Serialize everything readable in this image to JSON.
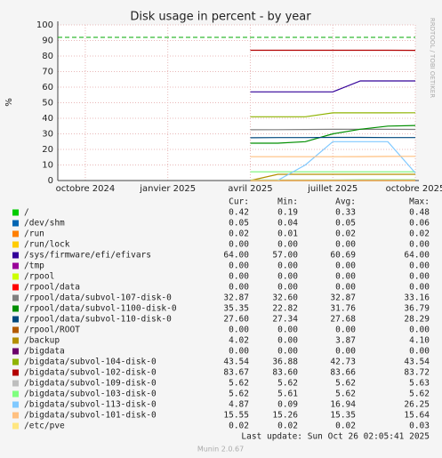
{
  "chart_data": {
    "type": "line",
    "title": "Disk usage in percent - by year",
    "y_label": "%",
    "side_label": "RRDTOOL / TOBI OETIKER",
    "x": [
      "2025-04",
      "2025-05",
      "2025-06",
      "2025-07",
      "2025-08",
      "2025-09",
      "2025-10"
    ],
    "xlim": [
      "2024-09",
      "2025-10"
    ],
    "xticks": [
      {
        "value": "2024-10",
        "label": "octobre 2024"
      },
      {
        "value": "2025-01",
        "label": "janvier 2025"
      },
      {
        "value": "2025-04",
        "label": "avril 2025"
      },
      {
        "value": "2025-07",
        "label": "juillet 2025"
      },
      {
        "value": "2025-10",
        "label": "octobre 2025"
      }
    ],
    "ylim": [
      0,
      100
    ],
    "yticks": [
      0,
      10,
      20,
      30,
      40,
      50,
      60,
      70,
      80,
      90,
      100
    ],
    "grid": true,
    "warning": {
      "value": 92,
      "color": "#00aa00"
    },
    "series": [
      {
        "name": "/",
        "color": "#00cc00",
        "values": [
          0.3,
          0.3,
          0.3,
          0.3,
          0.4,
          0.4,
          0.42
        ]
      },
      {
        "name": "/dev/shm",
        "color": "#0066b3",
        "values": [
          0.05,
          0.05,
          0.05,
          0.05,
          0.05,
          0.05,
          0.05
        ]
      },
      {
        "name": "/run",
        "color": "#ff8000",
        "values": [
          0.02,
          0.02,
          0.02,
          0.02,
          0.02,
          0.02,
          0.02
        ]
      },
      {
        "name": "/run/lock",
        "color": "#ffcc00",
        "values": [
          0,
          0,
          0,
          0,
          0,
          0,
          0
        ]
      },
      {
        "name": "/sys/firmware/efi/efivars",
        "color": "#330099",
        "values": [
          57,
          57,
          57,
          57,
          64,
          64,
          64
        ]
      },
      {
        "name": "/tmp",
        "color": "#990099",
        "values": [
          0,
          0,
          0,
          0,
          0,
          0,
          0
        ]
      },
      {
        "name": "/rpool",
        "color": "#ccff00",
        "values": [
          0,
          0,
          0,
          0,
          0,
          0,
          0
        ]
      },
      {
        "name": "/rpool/data",
        "color": "#ff0000",
        "values": [
          0,
          0,
          0,
          0,
          0,
          0,
          0
        ]
      },
      {
        "name": "/rpool/data/subvol-107-disk-0",
        "color": "#808080",
        "values": [
          32.6,
          32.7,
          32.8,
          32.9,
          32.9,
          32.9,
          32.87
        ]
      },
      {
        "name": "/rpool/data/subvol-1100-disk-0",
        "color": "#008f00",
        "values": [
          24,
          24,
          25,
          30,
          33,
          35,
          35.35
        ]
      },
      {
        "name": "/rpool/data/subvol-110-disk-0",
        "color": "#00487d",
        "values": [
          27.5,
          27.6,
          27.6,
          27.7,
          27.7,
          27.6,
          27.6
        ]
      },
      {
        "name": "/rpool/ROOT",
        "color": "#b35a00",
        "values": [
          0,
          0,
          0,
          0,
          0,
          0,
          0
        ]
      },
      {
        "name": "/backup",
        "color": "#b38f00",
        "values": [
          0,
          4,
          4,
          4,
          4,
          4,
          4.02
        ]
      },
      {
        "name": "/bigdata",
        "color": "#6b006b",
        "values": [
          0,
          0,
          0,
          0,
          0,
          0,
          0
        ]
      },
      {
        "name": "/bigdata/subvol-104-disk-0",
        "color": "#8fb300",
        "values": [
          41,
          41,
          41,
          43.5,
          43.5,
          43.5,
          43.54
        ]
      },
      {
        "name": "/bigdata/subvol-102-disk-0",
        "color": "#b30000",
        "values": [
          83.7,
          83.7,
          83.7,
          83.7,
          83.7,
          83.7,
          83.67
        ]
      },
      {
        "name": "/bigdata/subvol-109-disk-0",
        "color": "#bebebe",
        "values": [
          5.62,
          5.62,
          5.62,
          5.62,
          5.62,
          5.62,
          5.62
        ]
      },
      {
        "name": "/bigdata/subvol-103-disk-0",
        "color": "#80ff80",
        "values": [
          5.62,
          5.62,
          5.62,
          5.62,
          5.62,
          5.62,
          5.62
        ]
      },
      {
        "name": "/bigdata/subvol-113-disk-0",
        "color": "#80c9ff",
        "values": [
          0.1,
          0.1,
          10,
          25,
          25,
          25,
          4.87
        ]
      },
      {
        "name": "/bigdata/subvol-101-disk-0",
        "color": "#ffc080",
        "values": [
          15.3,
          15.3,
          15.3,
          15.3,
          15.4,
          15.5,
          15.55
        ]
      },
      {
        "name": "/etc/pve",
        "color": "#ffe680",
        "values": [
          0.02,
          0.02,
          0.02,
          0.02,
          0.02,
          0.02,
          0.02
        ]
      }
    ],
    "stats": {
      "columns": [
        "Cur:",
        "Min:",
        "Avg:",
        "Max:"
      ],
      "rows": [
        [
          "0.42",
          "0.19",
          "0.33",
          "0.48"
        ],
        [
          "0.05",
          "0.04",
          "0.05",
          "0.06"
        ],
        [
          "0.02",
          "0.01",
          "0.02",
          "0.02"
        ],
        [
          "0.00",
          "0.00",
          "0.00",
          "0.00"
        ],
        [
          "64.00",
          "57.00",
          "60.69",
          "64.00"
        ],
        [
          "0.00",
          "0.00",
          "0.00",
          "0.00"
        ],
        [
          "0.00",
          "0.00",
          "0.00",
          "0.00"
        ],
        [
          "0.00",
          "0.00",
          "0.00",
          "0.00"
        ],
        [
          "32.87",
          "32.60",
          "32.87",
          "33.16"
        ],
        [
          "35.35",
          "22.82",
          "31.76",
          "36.79"
        ],
        [
          "27.60",
          "27.34",
          "27.68",
          "28.29"
        ],
        [
          "0.00",
          "0.00",
          "0.00",
          "0.00"
        ],
        [
          "4.02",
          "0.00",
          "3.87",
          "4.10"
        ],
        [
          "0.00",
          "0.00",
          "0.00",
          "0.00"
        ],
        [
          "43.54",
          "36.88",
          "42.73",
          "43.54"
        ],
        [
          "83.67",
          "83.60",
          "83.66",
          "83.72"
        ],
        [
          "5.62",
          "5.62",
          "5.62",
          "5.63"
        ],
        [
          "5.62",
          "5.61",
          "5.62",
          "5.62"
        ],
        [
          "4.87",
          "0.09",
          "16.94",
          "26.25"
        ],
        [
          "15.55",
          "15.26",
          "15.35",
          "15.64"
        ],
        [
          "0.02",
          "0.02",
          "0.02",
          "0.03"
        ]
      ]
    },
    "last_update": "Last update: Sun Oct 26 02:05:41 2025",
    "footer": "Munin 2.0.67"
  }
}
